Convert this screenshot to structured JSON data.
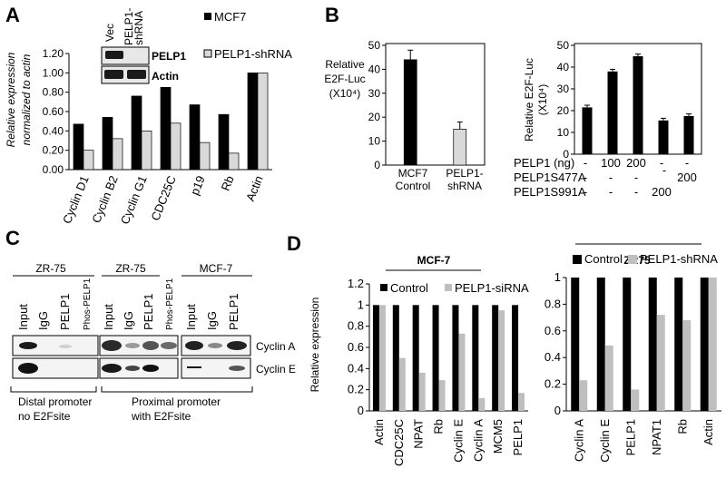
{
  "panel_labels": {
    "a": "A",
    "b": "B",
    "c": "C",
    "d": "D"
  },
  "colors": {
    "black": "#000000",
    "gray": "#bfbfbf",
    "light": "#d9d9d9",
    "band": "#1a1a1a"
  },
  "panelA": {
    "ylabel_line1": "Relative expression",
    "ylabel_line2": "normalized to actin",
    "inset": {
      "col1": "Vec",
      "col2_line1": "PELP1-",
      "col2_line2": "shRNA",
      "row1": "PELP1",
      "row2": "Actin"
    }
  },
  "panelB": {
    "ylabel_left_line1": "Relative",
    "ylabel_left_line2": "E2F-Luc",
    "ylabel_left_line3": "(X10⁴)",
    "ylabel_right_line1": "Relative E2F-Luc",
    "ylabel_right_line2": "(X10⁴)",
    "xlabels_left": [
      "MCF7",
      "Control",
      "PELP1-",
      "shRNA"
    ],
    "table_rows": [
      {
        "label": "PELP1 (ng)",
        "cells": [
          "-",
          "100",
          "200",
          "-",
          "-"
        ]
      },
      {
        "label": "PELP1S477A",
        "cells": [
          "-",
          "-",
          "-",
          "-",
          "200"
        ]
      },
      {
        "label": "PELP1S991A",
        "cells": [
          "-",
          "-",
          "-",
          "200",
          ""
        ]
      }
    ]
  },
  "panelC": {
    "group1_title": "ZR-75",
    "group2_title": "ZR-75",
    "group3_title": "MCF-7",
    "lanes1": [
      "Input",
      "IgG",
      "PELP1",
      "Phos-PELP1"
    ],
    "lanes2": [
      "Input",
      "IgG",
      "PELP1",
      "Phos-PELP1"
    ],
    "lanes3": [
      "Input",
      "IgG",
      "PELP1"
    ],
    "row1": "Cyclin A",
    "row2": "Cyclin E",
    "caption_left_line1": "Distal  promoter",
    "caption_left_line2": "no E2Fsite",
    "caption_right_line1": "Proximal  promoter",
    "caption_right_line2": "with E2Fsite"
  },
  "panelD": {
    "ylabel": "Relative expression",
    "left_title": "MCF-7",
    "right_title": "ZR75"
  },
  "chart_data": [
    {
      "id": "A",
      "type": "bar",
      "categories": [
        "Cyclin D1",
        "Cyclin B2",
        "Cyclin G1",
        "CDC25C",
        "p19",
        "Rb",
        "Actin"
      ],
      "series": [
        {
          "name": "MCF7",
          "values": [
            0.47,
            0.54,
            0.76,
            0.85,
            0.67,
            0.57,
            1.0
          ]
        },
        {
          "name": "PELP1-shRNA",
          "values": [
            0.2,
            0.32,
            0.4,
            0.48,
            0.28,
            0.17,
            1.0
          ]
        }
      ],
      "ylim": [
        0,
        1.2
      ],
      "yticks": [
        "0.00",
        "0.20",
        "0.40",
        "0.60",
        "0.80",
        "1.00",
        "1.20"
      ]
    },
    {
      "id": "B-left",
      "type": "bar",
      "categories": [
        "MCF7 Control",
        "PELP1-shRNA"
      ],
      "values": [
        44,
        15
      ],
      "ylim": [
        0,
        50
      ],
      "yticks": [
        "0",
        "10",
        "20",
        "30",
        "40",
        "50"
      ]
    },
    {
      "id": "B-right",
      "type": "bar",
      "categories": [
        "1",
        "2",
        "3",
        "4",
        "5"
      ],
      "values": [
        21.5,
        38,
        45,
        15.5,
        17.5
      ],
      "ylim": [
        0,
        50
      ],
      "yticks": [
        "0",
        "10",
        "20",
        "30",
        "40",
        "50"
      ]
    },
    {
      "id": "D-left",
      "type": "bar",
      "categories": [
        "Actin",
        "CDC25C",
        "NPAT",
        "Rb",
        "Cyclin E",
        "Cyclin A",
        "MCM5",
        "PELP1"
      ],
      "series": [
        {
          "name": "Control",
          "values": [
            1,
            1,
            1,
            1,
            1,
            1,
            1,
            1
          ]
        },
        {
          "name": "PELP1-siRNA",
          "values": [
            1,
            0.5,
            0.36,
            0.29,
            0.73,
            0.12,
            0.95,
            0.17
          ]
        }
      ],
      "ylim": [
        0,
        1.2
      ],
      "yticks": [
        "0",
        "0.2",
        "0.4",
        "0.6",
        "0.8",
        "1",
        "1.2"
      ]
    },
    {
      "id": "D-right",
      "type": "bar",
      "categories": [
        "Cyclin  A",
        "Cyclin  E",
        "PELP1",
        "NPAT1",
        "Rb",
        "Actin"
      ],
      "series": [
        {
          "name": "Control",
          "values": [
            1,
            1,
            1,
            1,
            1,
            1
          ]
        },
        {
          "name": "PELP1-shRNA",
          "values": [
            0.23,
            0.49,
            0.16,
            0.72,
            0.68,
            1
          ]
        }
      ],
      "ylim": [
        0,
        1
      ],
      "yticks": [
        "0",
        "0.2",
        "0.4",
        "0.6",
        "0.8",
        "1"
      ]
    }
  ]
}
